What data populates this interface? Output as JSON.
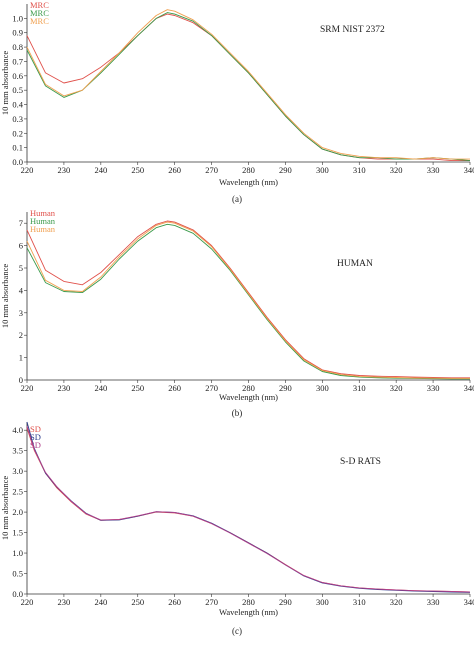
{
  "chart_data": [
    {
      "type": "line",
      "panel_label": "(a)",
      "sample_label": "SRM NIST 2372",
      "xlabel": "Wavelength (nm)",
      "ylabel": "10 mm absorbance",
      "xlim": [
        220,
        340
      ],
      "ylim": [
        0,
        1.1
      ],
      "xticks": [
        "220",
        "230",
        "240",
        "250",
        "260",
        "270",
        "280",
        "290",
        "300",
        "310",
        "320",
        "330",
        "340"
      ],
      "yticks": [
        "0.0",
        "0.1",
        "0.2",
        "0.3",
        "0.4",
        "0.5",
        "0.6",
        "0.7",
        "0.8",
        "0.9",
        "1.0"
      ],
      "grid": false,
      "legend_position": "top-left",
      "series": [
        {
          "name": "MRC",
          "color": "#e0504a",
          "x": [
            220,
            225,
            230,
            235,
            240,
            245,
            250,
            255,
            258,
            260,
            265,
            270,
            275,
            280,
            285,
            290,
            295,
            300,
            305,
            310,
            315,
            320,
            325,
            330,
            335,
            340
          ],
          "y": [
            0.88,
            0.62,
            0.55,
            0.58,
            0.66,
            0.76,
            0.88,
            1.0,
            1.03,
            1.02,
            0.97,
            0.88,
            0.75,
            0.62,
            0.47,
            0.32,
            0.19,
            0.09,
            0.05,
            0.03,
            0.02,
            0.02,
            0.02,
            0.02,
            0.01,
            0.01
          ]
        },
        {
          "name": "MRC",
          "color": "#3a9a4a",
          "x": [
            220,
            225,
            230,
            235,
            240,
            245,
            250,
            255,
            258,
            260,
            265,
            270,
            275,
            280,
            285,
            290,
            295,
            300,
            305,
            310,
            315,
            320,
            325,
            330,
            335,
            340
          ],
          "y": [
            0.78,
            0.53,
            0.45,
            0.5,
            0.62,
            0.75,
            0.88,
            1.0,
            1.04,
            1.03,
            0.98,
            0.88,
            0.75,
            0.62,
            0.47,
            0.32,
            0.19,
            0.09,
            0.05,
            0.03,
            0.03,
            0.02,
            0.02,
            0.03,
            0.02,
            0.01
          ]
        },
        {
          "name": "MRC",
          "color": "#f0a050",
          "x": [
            220,
            225,
            230,
            235,
            240,
            245,
            250,
            255,
            258,
            260,
            265,
            270,
            275,
            280,
            285,
            290,
            295,
            300,
            305,
            310,
            315,
            320,
            325,
            330,
            335,
            340
          ],
          "y": [
            0.8,
            0.54,
            0.46,
            0.5,
            0.63,
            0.76,
            0.9,
            1.02,
            1.06,
            1.05,
            0.99,
            0.89,
            0.76,
            0.63,
            0.48,
            0.33,
            0.2,
            0.1,
            0.06,
            0.04,
            0.03,
            0.03,
            0.02,
            0.03,
            0.02,
            0.02
          ]
        }
      ]
    },
    {
      "type": "line",
      "panel_label": "(b)",
      "sample_label": "HUMAN",
      "xlabel": "Wavelength (nm)",
      "ylabel": "10 mm absorbance",
      "xlim": [
        220,
        340
      ],
      "ylim": [
        0,
        7.5
      ],
      "xticks": [
        "220",
        "230",
        "240",
        "250",
        "260",
        "270",
        "280",
        "290",
        "300",
        "310",
        "320",
        "330",
        "340"
      ],
      "yticks": [
        "0",
        "1",
        "2",
        "3",
        "4",
        "5",
        "6",
        "7"
      ],
      "grid": false,
      "legend_position": "top-left",
      "series": [
        {
          "name": "Human",
          "color": "#e0504a",
          "x": [
            220,
            225,
            230,
            235,
            240,
            245,
            250,
            255,
            258,
            260,
            265,
            270,
            275,
            280,
            285,
            290,
            295,
            300,
            305,
            310,
            315,
            320,
            325,
            330,
            335,
            340
          ],
          "y": [
            6.7,
            4.9,
            4.4,
            4.25,
            4.8,
            5.6,
            6.4,
            6.95,
            7.1,
            7.05,
            6.7,
            6.0,
            5.0,
            3.9,
            2.8,
            1.8,
            0.95,
            0.45,
            0.28,
            0.2,
            0.17,
            0.15,
            0.13,
            0.11,
            0.1,
            0.1
          ]
        },
        {
          "name": "Human",
          "color": "#3a9a4a",
          "x": [
            220,
            225,
            230,
            235,
            240,
            245,
            250,
            255,
            258,
            260,
            265,
            270,
            275,
            280,
            285,
            290,
            295,
            300,
            305,
            310,
            315,
            320,
            325,
            330,
            335,
            340
          ],
          "y": [
            5.9,
            4.35,
            3.95,
            3.9,
            4.5,
            5.4,
            6.2,
            6.8,
            6.95,
            6.9,
            6.55,
            5.85,
            4.9,
            3.8,
            2.7,
            1.7,
            0.85,
            0.38,
            0.2,
            0.13,
            0.1,
            0.08,
            0.07,
            0.06,
            0.05,
            0.05
          ]
        },
        {
          "name": "Human",
          "color": "#f0a050",
          "x": [
            220,
            225,
            230,
            235,
            240,
            245,
            250,
            255,
            258,
            260,
            265,
            270,
            275,
            280,
            285,
            290,
            295,
            300,
            305,
            310,
            315,
            320,
            325,
            330,
            335,
            340
          ],
          "y": [
            6.2,
            4.45,
            4.0,
            3.95,
            4.6,
            5.5,
            6.3,
            6.9,
            7.05,
            7.0,
            6.65,
            5.95,
            4.95,
            3.85,
            2.75,
            1.75,
            0.9,
            0.42,
            0.24,
            0.16,
            0.13,
            0.11,
            0.09,
            0.08,
            0.07,
            0.07
          ]
        }
      ]
    },
    {
      "type": "line",
      "panel_label": "(c)",
      "sample_label": "S-D RATS",
      "xlabel": "Wavelength (nm)",
      "ylabel": "10 mm absorbance",
      "xlim": [
        220,
        340
      ],
      "ylim": [
        0,
        4.2
      ],
      "xticks": [
        "220",
        "230",
        "240",
        "250",
        "260",
        "270",
        "280",
        "290",
        "300",
        "310",
        "320",
        "330",
        "340"
      ],
      "yticks": [
        "0.0",
        "0.5",
        "1.0",
        "1.5",
        "2.0",
        "2.5",
        "3.0",
        "3.5",
        "4.0"
      ],
      "grid": false,
      "legend_position": "top-left",
      "series": [
        {
          "name": "SD",
          "color": "#e0504a",
          "x": [
            220,
            222,
            225,
            228,
            232,
            236,
            240,
            245,
            250,
            255,
            260,
            265,
            270,
            275,
            280,
            285,
            290,
            295,
            300,
            305,
            310,
            315,
            320,
            325,
            330,
            335,
            340
          ],
          "y": [
            4.05,
            3.5,
            2.95,
            2.6,
            2.25,
            1.95,
            1.8,
            1.82,
            1.9,
            2.0,
            1.98,
            1.9,
            1.72,
            1.5,
            1.25,
            1.0,
            0.72,
            0.45,
            0.28,
            0.2,
            0.15,
            0.12,
            0.1,
            0.08,
            0.07,
            0.06,
            0.05
          ]
        },
        {
          "name": "SD",
          "color": "#2a3a8a",
          "x": [
            220,
            222,
            225,
            228,
            232,
            236,
            240,
            245,
            250,
            255,
            260,
            265,
            270,
            275,
            280,
            285,
            290,
            295,
            300,
            305,
            310,
            315,
            320,
            325,
            330,
            335,
            340
          ],
          "y": [
            4.2,
            3.55,
            2.95,
            2.62,
            2.27,
            1.97,
            1.8,
            1.81,
            1.9,
            2.01,
            1.99,
            1.91,
            1.73,
            1.5,
            1.25,
            1.0,
            0.71,
            0.44,
            0.27,
            0.19,
            0.14,
            0.11,
            0.09,
            0.07,
            0.06,
            0.05,
            0.04
          ]
        },
        {
          "name": "SD",
          "color": "#b0408a",
          "x": [
            220,
            222,
            225,
            228,
            232,
            236,
            240,
            245,
            250,
            255,
            260,
            265,
            270,
            275,
            280,
            285,
            290,
            295,
            300,
            305,
            310,
            315,
            320,
            325,
            330,
            335,
            340
          ],
          "y": [
            4.1,
            3.52,
            2.97,
            2.63,
            2.26,
            1.96,
            1.81,
            1.82,
            1.91,
            2.01,
            1.99,
            1.9,
            1.72,
            1.49,
            1.24,
            0.99,
            0.71,
            0.45,
            0.28,
            0.2,
            0.15,
            0.12,
            0.1,
            0.08,
            0.07,
            0.06,
            0.05
          ]
        }
      ]
    }
  ]
}
